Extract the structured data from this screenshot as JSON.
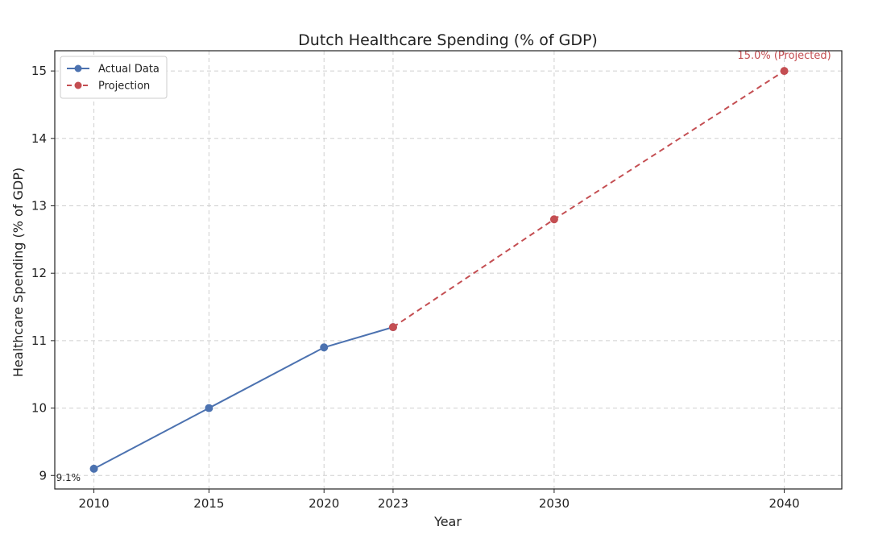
{
  "chart_data": {
    "type": "line",
    "title": "Dutch Healthcare Spending (% of GDP)",
    "xlabel": "Year",
    "ylabel": "Healthcare Spending (% of GDP)",
    "xlim": [
      2008.3,
      2042.5
    ],
    "ylim": [
      8.8,
      15.3
    ],
    "x_ticks": [
      2010,
      2015,
      2020,
      2023,
      2030,
      2040
    ],
    "y_ticks": [
      9,
      10,
      11,
      12,
      13,
      14,
      15
    ],
    "grid": true,
    "legend_position": "top-left",
    "series": [
      {
        "name": "Actual Data",
        "style": "solid",
        "color": "#4c72b0",
        "x": [
          2010,
          2015,
          2020,
          2023
        ],
        "y": [
          9.1,
          10.0,
          10.9,
          11.2
        ]
      },
      {
        "name": "Projection",
        "style": "dashed",
        "color": "#c44e52",
        "x": [
          2023,
          2030,
          2040
        ],
        "y": [
          11.2,
          12.8,
          15.0
        ]
      }
    ],
    "annotations": [
      {
        "text": "9.1%",
        "x": 2010,
        "y": 9.1,
        "color": "#222222"
      },
      {
        "text": "15.0% (Projected)",
        "x": 2040,
        "y": 15.0,
        "color": "#c44e52"
      }
    ]
  }
}
